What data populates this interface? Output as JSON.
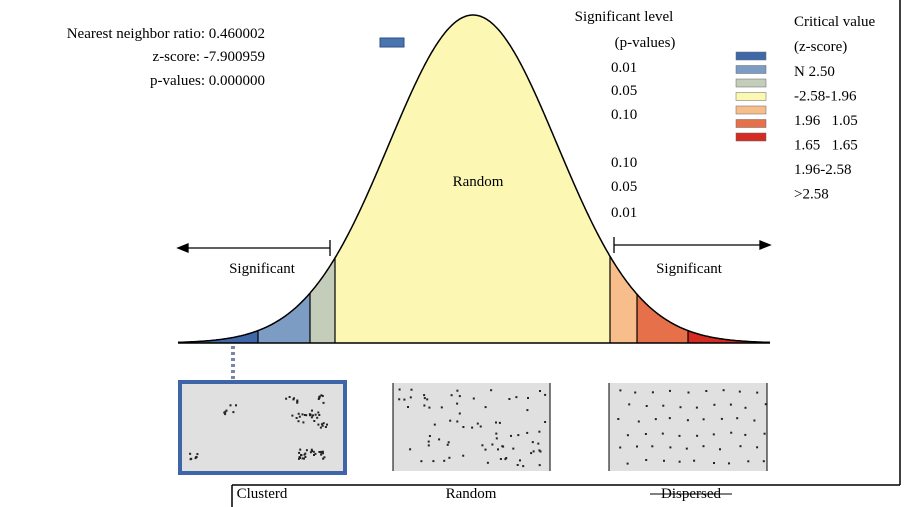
{
  "stats": [
    "Nearest neighbor ratio: 0.460002",
    "z-score: -7.900959",
    "p-values: 0.000000"
  ],
  "significance_level": {
    "title": [
      "Significant level",
      "(p-values)"
    ],
    "values": [
      "0.01",
      "0.05",
      "0.10",
      "0.10",
      "0.05",
      "0.01"
    ]
  },
  "critical_value": {
    "title": [
      "Critical value",
      "(z-score)"
    ],
    "values": [
      "N 2.50",
      "-2.58-1.96",
      "1.96   1.05",
      "1.65   1.65",
      "1.96-2.58",
      ">2.58"
    ]
  },
  "curve_label": "Random",
  "significant_labels": [
    "Significant",
    "Significant"
  ],
  "patterns": [
    "Clusterd",
    "Random",
    "Dispersed"
  ]
}
